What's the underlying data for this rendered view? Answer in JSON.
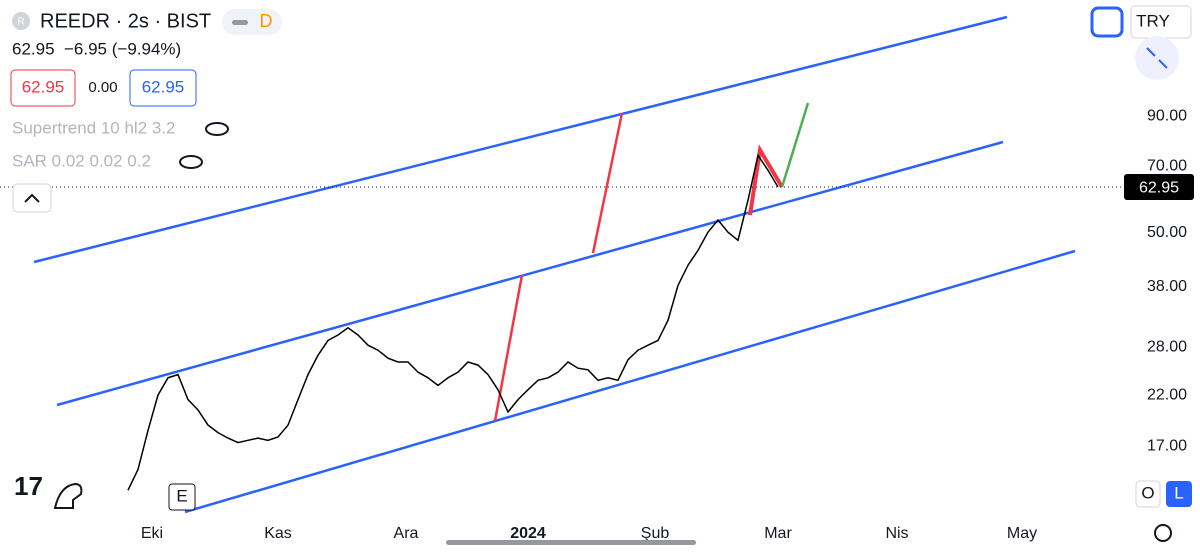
{
  "header": {
    "logo": "R",
    "symbol": "REEDR · 2s · BIST",
    "badge": "D",
    "price": "62.95",
    "change": "−6.95 (−9.94%)",
    "bid": "62.95",
    "spread": "0.00",
    "ask": "62.95",
    "indicators": [
      "Supertrend 10 hl2 3.2",
      "SAR 0.02 0.02 0.2"
    ]
  },
  "controls": {
    "currency": "TRY",
    "scale_button": "E",
    "options": [
      "O",
      "L"
    ]
  },
  "chart_data": {
    "type": "line",
    "log_scale": true,
    "last_price": 62.95,
    "series": [
      {
        "color": "#000000",
        "values": [
          13.6,
          15.1,
          18.4,
          22.0,
          24.0,
          24.4,
          21.5,
          20.4,
          18.9,
          18.2,
          17.7,
          17.3,
          17.5,
          17.7,
          17.5,
          17.8,
          18.9,
          21.5,
          24.4,
          26.9,
          29.0,
          29.8,
          30.9,
          29.8,
          28.3,
          27.6,
          26.5,
          26.0,
          26.0,
          24.7,
          24.0,
          23.1,
          24.0,
          24.7,
          26.0,
          25.6,
          24.4,
          22.6,
          20.2,
          21.5,
          22.6,
          23.7,
          24.0,
          24.7,
          26.0,
          25.2,
          25.0,
          23.7,
          24.0,
          23.7,
          26.3,
          27.6,
          28.3,
          29.0,
          32.1,
          38.3,
          42.4,
          45.7,
          50.1,
          53.3,
          50.1,
          48.1,
          58.9,
          73.9,
          68.5,
          62.95
        ]
      }
    ],
    "xlim": [
      -12.8,
      98.2
    ],
    "xticks": [
      {
        "value": 2.4,
        "label": "Eki"
      },
      {
        "value": 15,
        "label": "Kas"
      },
      {
        "value": 27.8,
        "label": "Ara"
      },
      {
        "value": 40,
        "label": "2024"
      },
      {
        "value": 52.7,
        "label": "Şub"
      },
      {
        "value": 65,
        "label": "Mar"
      },
      {
        "value": 76.9,
        "label": "Nis"
      },
      {
        "value": 89.4,
        "label": "May"
      }
    ],
    "ylim": [
      12,
      162
    ],
    "yticks": [
      {
        "value": 17,
        "label": "17.00"
      },
      {
        "value": 22,
        "label": "22.00"
      },
      {
        "value": 28,
        "label": "28.00"
      },
      {
        "value": 38,
        "label": "38.00"
      },
      {
        "value": 50,
        "label": "50.00"
      },
      {
        "value": 70,
        "label": "70.00"
      },
      {
        "value": 90,
        "label": "90.00"
      }
    ]
  }
}
